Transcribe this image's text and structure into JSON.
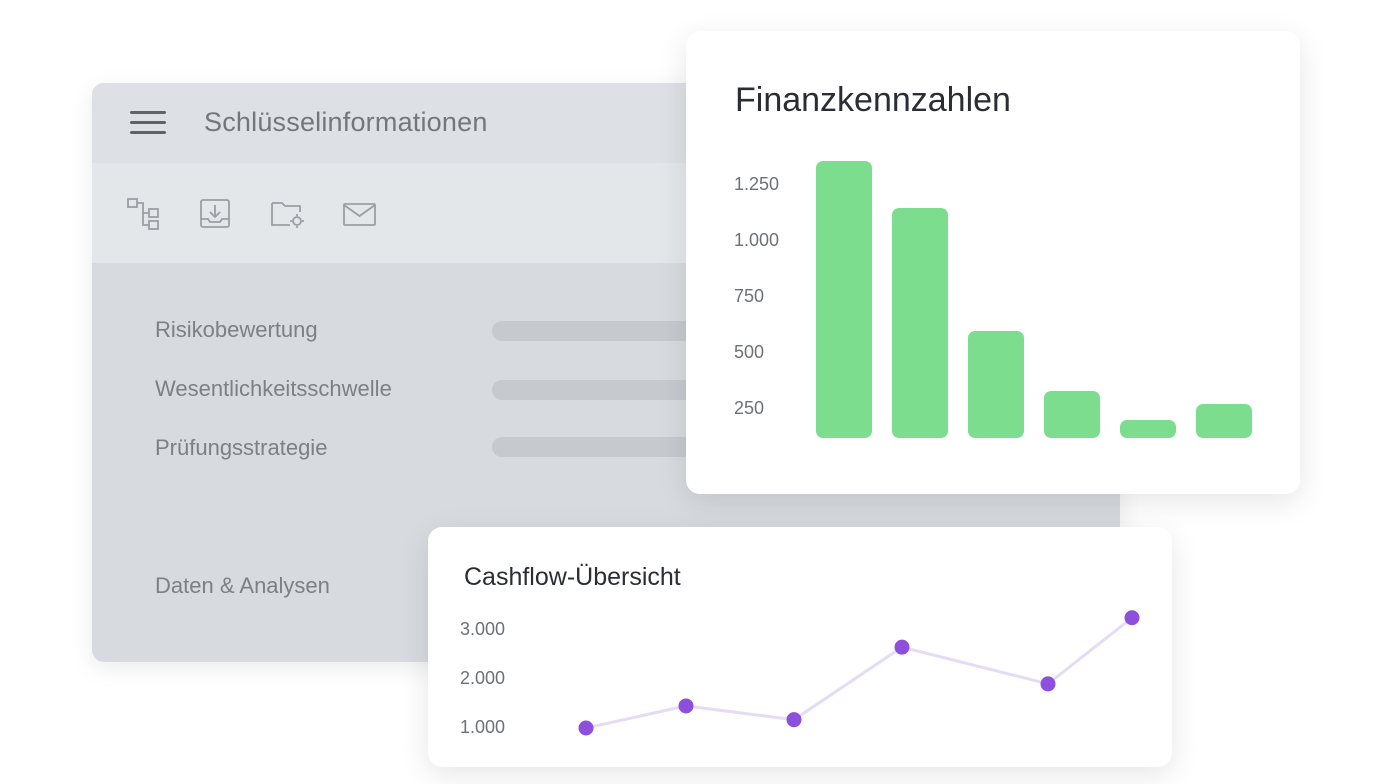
{
  "window": {
    "title": "Schlüsselinformationen",
    "toolbar_icons": [
      "hierarchy-icon",
      "download-tray-icon",
      "folder-settings-icon",
      "mail-icon"
    ],
    "fields": [
      {
        "label": "Risikobewertung"
      },
      {
        "label": "Wesentlichkeitsschwelle"
      },
      {
        "label": "Prüfungsstrategie"
      }
    ],
    "section_label": "Daten & Analysen"
  },
  "colors": {
    "bar": "#7ddd8f",
    "line_point": "#8e4fdc",
    "line_stroke": "#e4dcf5"
  },
  "chart_data": [
    {
      "type": "bar",
      "title": "Finanzkennzahlen",
      "yticks": [
        "1.250",
        "1.000",
        "750",
        "500",
        "250"
      ],
      "ytick_values": [
        1250,
        1000,
        750,
        500,
        250
      ],
      "values": [
        1360,
        1150,
        600,
        330,
        200,
        270
      ],
      "ylim": [
        120,
        1350
      ],
      "grid": false
    },
    {
      "type": "line",
      "title": "Cashflow-Übersicht",
      "yticks": [
        "3.000",
        "2.000",
        "1.000"
      ],
      "ytick_values": [
        3000,
        2000,
        1000
      ],
      "values": [
        1000,
        1450,
        1170,
        2650,
        1900,
        3250
      ],
      "ylim": [
        1000,
        3000
      ],
      "grid": false
    }
  ]
}
